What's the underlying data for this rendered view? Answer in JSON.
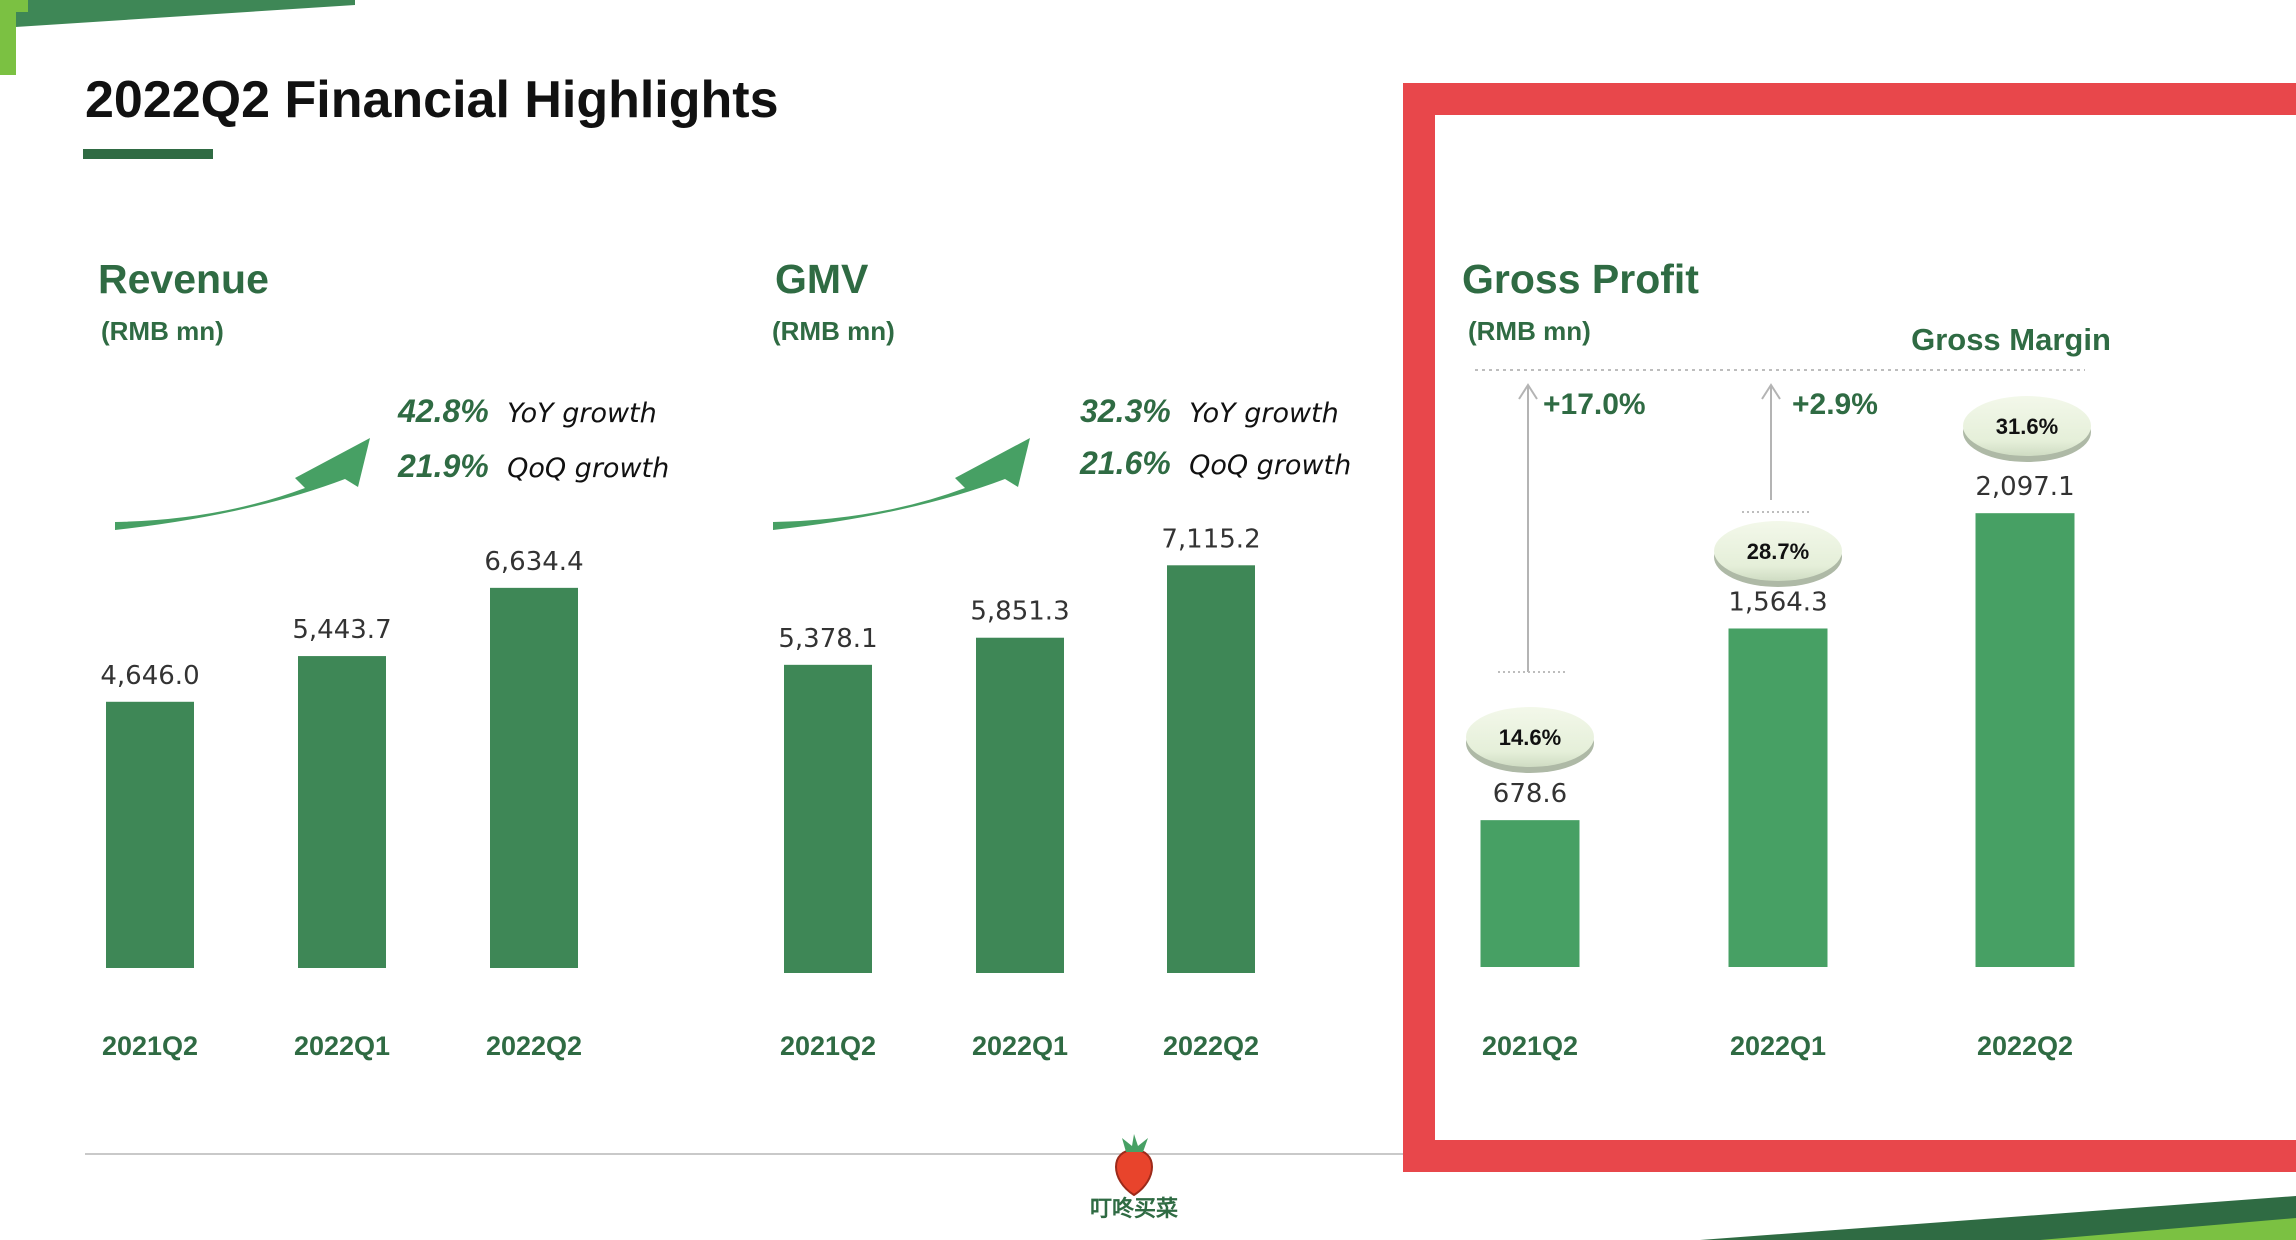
{
  "page": {
    "title": "2022Q2 Financial Highlights",
    "logo_text": "叮咚买菜"
  },
  "colors": {
    "bar_dark": "#3E8756",
    "bar_light": "#47A064",
    "header_green": "#2F6B43",
    "accent_green": "#47A064",
    "highlight_border": "#E8474B",
    "arrow_gray": "#B4B4B4"
  },
  "chart_data": [
    {
      "type": "bar",
      "title": "Revenue",
      "subtitle": "(RMB mn)",
      "categories": [
        "2021Q2",
        "2022Q1",
        "2022Q2"
      ],
      "values": [
        4646.0,
        5443.7,
        6634.4
      ],
      "value_labels": [
        "4,646.0",
        "5,443.7",
        "6,634.4"
      ],
      "growth": [
        {
          "value": "42.8%",
          "label": "YoY growth"
        },
        {
          "value": "21.9%",
          "label": "QoQ growth"
        }
      ]
    },
    {
      "type": "bar",
      "title": "GMV",
      "subtitle": "(RMB mn)",
      "categories": [
        "2021Q2",
        "2022Q1",
        "2022Q2"
      ],
      "values": [
        5378.1,
        5851.3,
        7115.2
      ],
      "value_labels": [
        "5,378.1",
        "5,851.3",
        "7,115.2"
      ],
      "growth": [
        {
          "value": "32.3%",
          "label": "YoY growth"
        },
        {
          "value": "21.6%",
          "label": "QoQ growth"
        }
      ]
    },
    {
      "type": "bar",
      "title": "Gross Profit",
      "subtitle": "(RMB mn)",
      "categories": [
        "2021Q2",
        "2022Q1",
        "2022Q2"
      ],
      "values": [
        678.6,
        1564.3,
        2097.1
      ],
      "value_labels": [
        "678.6",
        "1,564.3",
        "2,097.1"
      ],
      "margin_title": "Gross Margin",
      "margins": [
        "14.6%",
        "28.7%",
        "31.6%"
      ],
      "margin_increases": [
        "+17.0%",
        "+2.9%"
      ],
      "highlighted": true
    }
  ]
}
